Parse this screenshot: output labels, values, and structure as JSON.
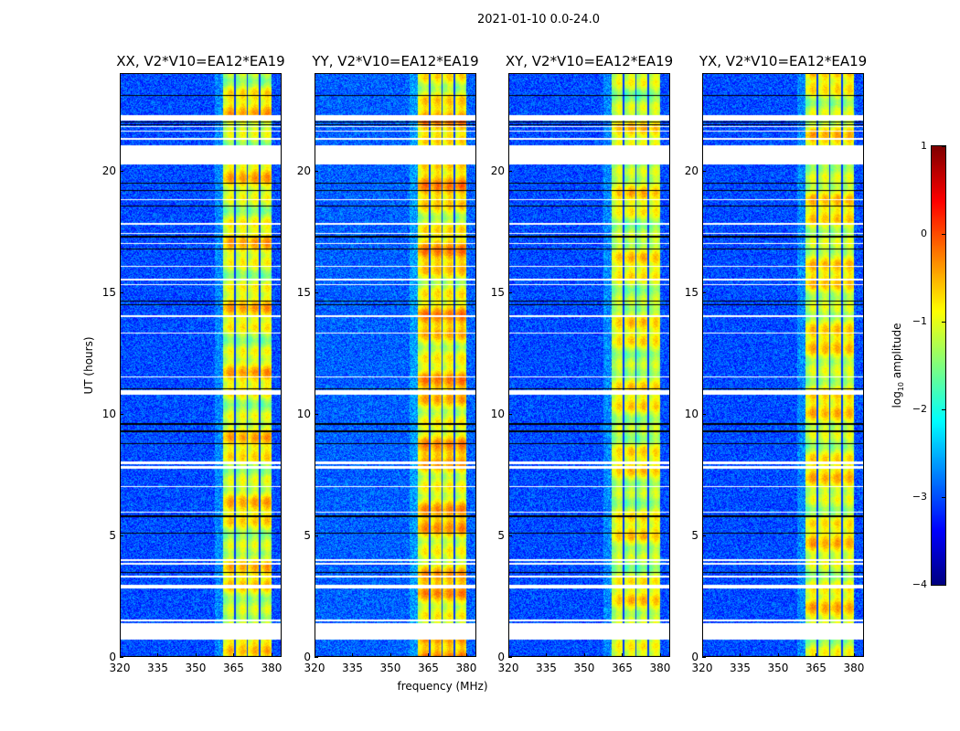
{
  "chart_data": {
    "type": "heatmap",
    "title": "2021-01-10 0.0-24.0",
    "xlabel": "frequency (MHz)",
    "ylabel": "UT (hours)",
    "xlim": [
      320,
      384
    ],
    "ylim": [
      0,
      24
    ],
    "xticks": [
      "320",
      "335",
      "350",
      "365",
      "380"
    ],
    "yticks": [
      "0",
      "5",
      "10",
      "15",
      "20"
    ],
    "panels": [
      {
        "title": "XX, V2*V10=EA12*EA19",
        "background_log10_amp": -3.0,
        "band_log10_amp": -1.0
      },
      {
        "title": "YY, V2*V10=EA12*EA19",
        "background_log10_amp": -2.9,
        "band_log10_amp": -0.8
      },
      {
        "title": "XY, V2*V10=EA12*EA19",
        "background_log10_amp": -3.0,
        "band_log10_amp": -1.1
      },
      {
        "title": "YX, V2*V10=EA12*EA19",
        "background_log10_amp": -3.0,
        "band_log10_amp": -1.0
      }
    ],
    "band_mhz": [
      360.5,
      380.0
    ],
    "subband_edges_mhz": [
      365.3,
      370.2,
      375.1
    ],
    "flagged_hours": [
      [
        0.75,
        1.4
      ],
      [
        1.5,
        1.55
      ],
      [
        2.85,
        3.0
      ],
      [
        3.3,
        3.35
      ],
      [
        3.8,
        3.88
      ],
      [
        3.95,
        4.02
      ],
      [
        5.95,
        6.0
      ],
      [
        7.0,
        7.05
      ],
      [
        7.75,
        7.85
      ],
      [
        7.95,
        8.05
      ],
      [
        10.8,
        11.0
      ],
      [
        11.5,
        11.55
      ],
      [
        13.3,
        13.35
      ],
      [
        14.0,
        14.05
      ],
      [
        15.3,
        15.35
      ],
      [
        15.5,
        15.55
      ],
      [
        16.05,
        16.1
      ],
      [
        17.0,
        17.05
      ],
      [
        17.4,
        17.45
      ],
      [
        17.8,
        17.85
      ],
      [
        18.8,
        18.85
      ],
      [
        20.25,
        21.05
      ],
      [
        21.28,
        21.35
      ],
      [
        21.6,
        21.65
      ],
      [
        21.8,
        21.85
      ],
      [
        22.05,
        22.3
      ]
    ],
    "dark_hours": [
      0.05,
      2.95,
      3.5,
      5.1,
      5.8,
      8.8,
      9.3,
      9.6,
      11.05,
      14.5,
      14.65,
      16.8,
      17.3,
      18.55,
      19.2,
      19.5,
      21.9,
      22.0,
      23.1
    ],
    "colorbar": {
      "label": "log10 amplitude",
      "range": [
        -4,
        1
      ],
      "ticks": [
        "1",
        "0",
        "−1",
        "−2",
        "−3",
        "−4"
      ]
    }
  }
}
